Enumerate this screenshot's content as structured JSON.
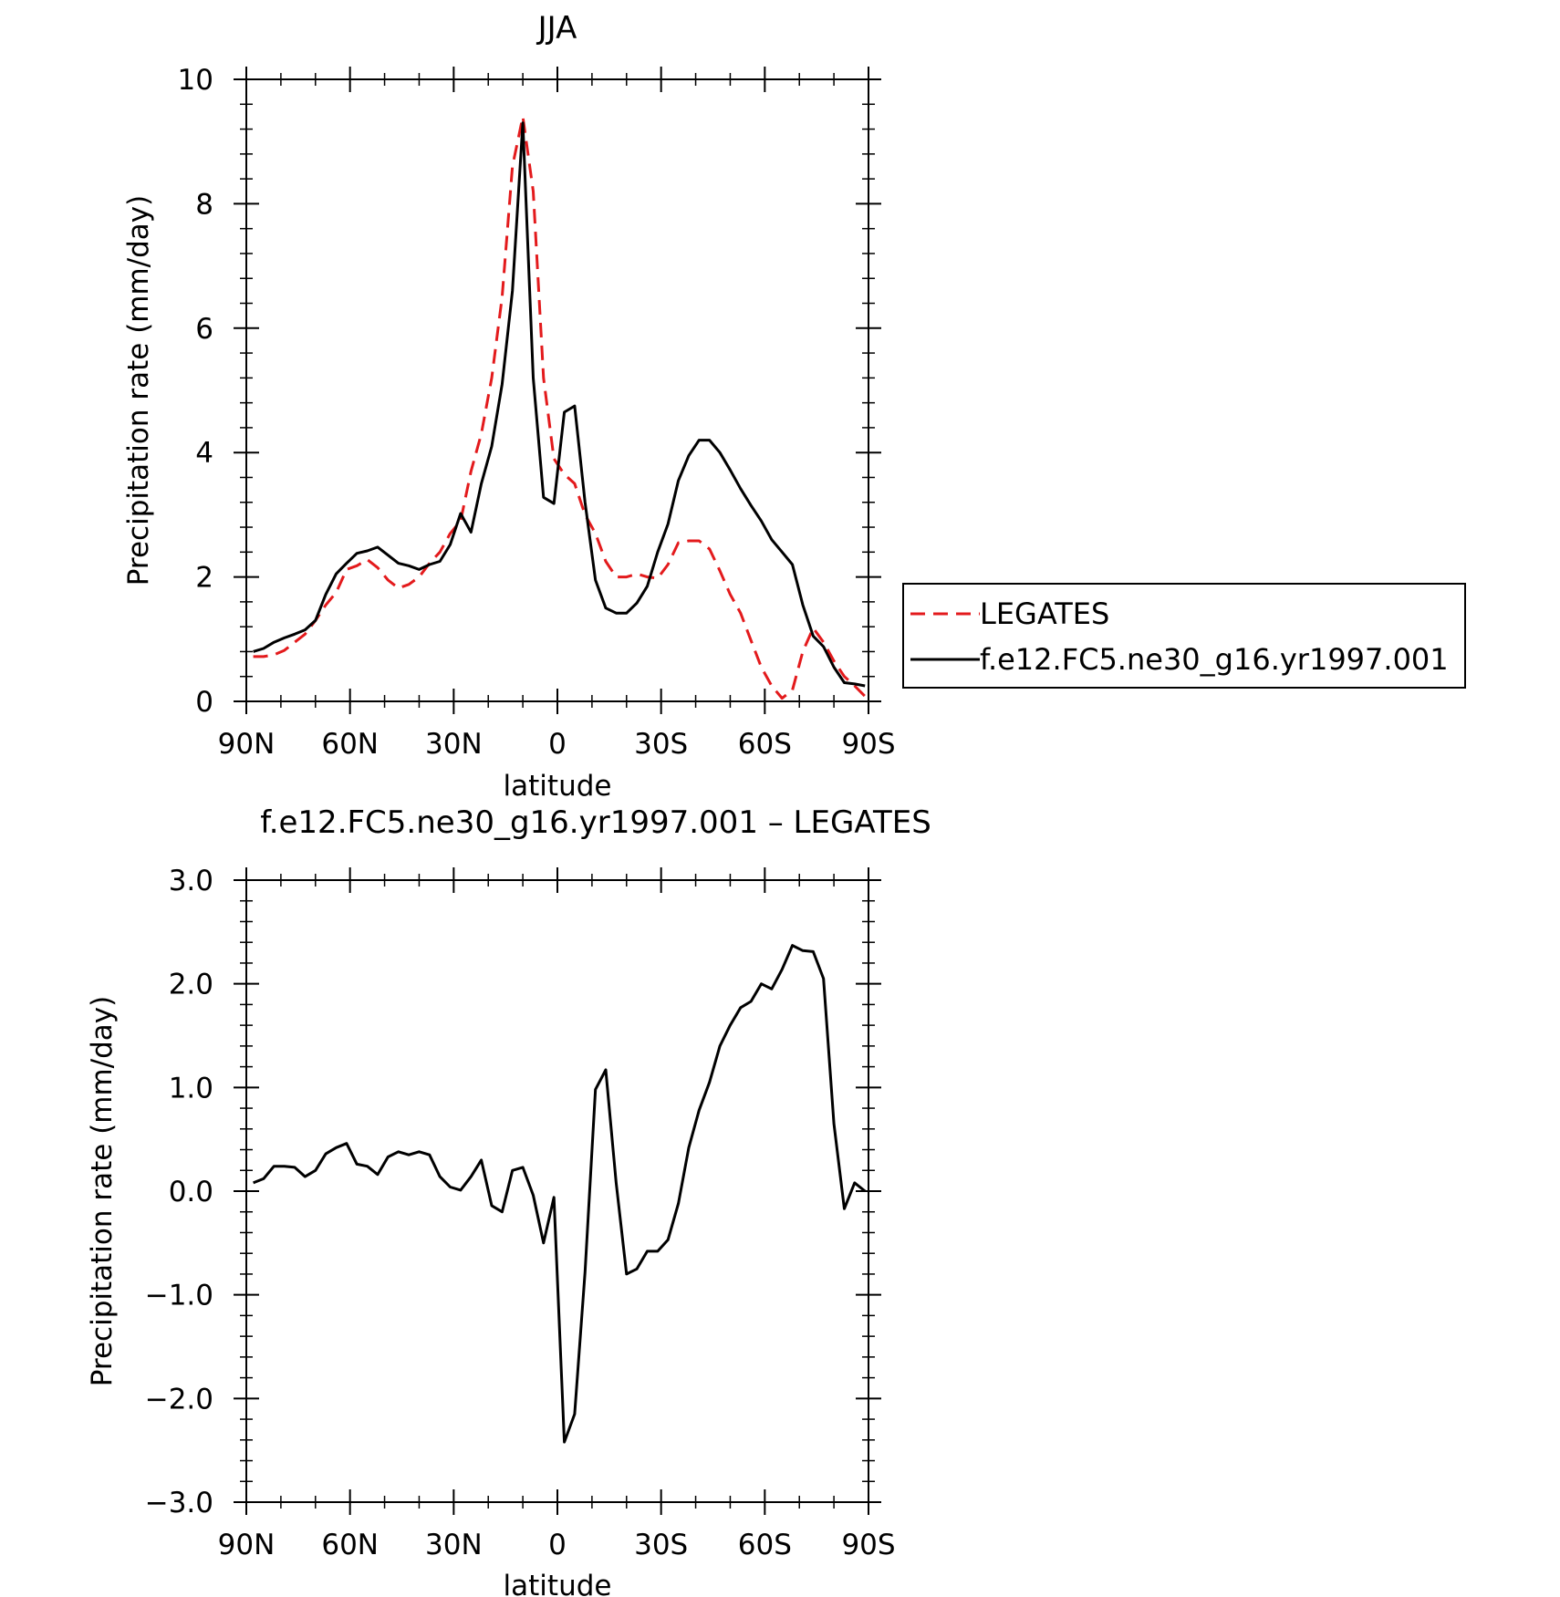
{
  "chart_data": [
    {
      "type": "line",
      "title": "JJA",
      "xlabel": "latitude",
      "ylabel": "Precipitation rate (mm/day)",
      "xlim": [
        90,
        -90
      ],
      "ylim": [
        0,
        10
      ],
      "x_ticks": [
        {
          "value": 90,
          "label": "90N"
        },
        {
          "value": 60,
          "label": "60N"
        },
        {
          "value": 30,
          "label": "30N"
        },
        {
          "value": 0,
          "label": "0"
        },
        {
          "value": -30,
          "label": "30S"
        },
        {
          "value": -60,
          "label": "60S"
        },
        {
          "value": -90,
          "label": "90S"
        }
      ],
      "y_ticks": [
        {
          "value": 0,
          "label": "0"
        },
        {
          "value": 2,
          "label": "2"
        },
        {
          "value": 4,
          "label": "4"
        },
        {
          "value": 6,
          "label": "6"
        },
        {
          "value": 8,
          "label": "8"
        },
        {
          "value": 10,
          "label": "10"
        }
      ],
      "legend_position": "right",
      "series": [
        {
          "name": "LEGATES",
          "color": "#e31a1c",
          "dash": true,
          "x": [
            88,
            85,
            82,
            79,
            76,
            73,
            70,
            67,
            64,
            61,
            58,
            55,
            52,
            49,
            46,
            43,
            40,
            37,
            34,
            31,
            28,
            25,
            22,
            19,
            16,
            13,
            10,
            7,
            4,
            1,
            -2,
            -5,
            -8,
            -11,
            -14,
            -17,
            -20,
            -23,
            -26,
            -29,
            -32,
            -35,
            -38,
            -41,
            -44,
            -47,
            -50,
            -53,
            -56,
            -59,
            -62,
            -65,
            -68,
            -71,
            -74,
            -77,
            -80,
            -83,
            -86,
            -89
          ],
          "y": [
            0.72,
            0.72,
            0.75,
            0.82,
            0.95,
            1.08,
            1.3,
            1.55,
            1.75,
            2.12,
            2.18,
            2.28,
            2.15,
            1.95,
            1.82,
            1.88,
            2.0,
            2.22,
            2.4,
            2.7,
            2.9,
            3.7,
            4.3,
            5.2,
            6.5,
            8.6,
            9.4,
            8.2,
            5.2,
            3.9,
            3.65,
            3.5,
            3.0,
            2.7,
            2.25,
            2.0,
            2.0,
            2.05,
            2.0,
            1.98,
            2.2,
            2.55,
            2.58,
            2.58,
            2.45,
            2.1,
            1.72,
            1.42,
            0.98,
            0.55,
            0.25,
            0.05,
            0.18,
            0.8,
            1.18,
            0.95,
            0.65,
            0.4,
            0.25,
            0.08
          ]
        },
        {
          "name": "f.e12.FC5.ne30_g16.yr1997.001",
          "color": "#000000",
          "dash": false,
          "x": [
            88,
            85,
            82,
            79,
            76,
            73,
            70,
            67,
            64,
            61,
            58,
            55,
            52,
            49,
            46,
            43,
            40,
            37,
            34,
            31,
            28,
            25,
            22,
            19,
            16,
            13,
            10,
            7,
            4,
            1,
            -2,
            -5,
            -8,
            -11,
            -14,
            -17,
            -20,
            -23,
            -26,
            -29,
            -32,
            -35,
            -38,
            -41,
            -44,
            -47,
            -50,
            -53,
            -56,
            -59,
            -62,
            -65,
            -68,
            -71,
            -74,
            -77,
            -80,
            -83,
            -86,
            -89
          ],
          "y": [
            0.8,
            0.85,
            0.95,
            1.02,
            1.08,
            1.15,
            1.3,
            1.72,
            2.05,
            2.22,
            2.38,
            2.42,
            2.48,
            2.35,
            2.22,
            2.18,
            2.12,
            2.2,
            2.25,
            2.52,
            3.02,
            2.72,
            3.5,
            4.1,
            5.1,
            6.6,
            9.3,
            5.2,
            3.28,
            3.18,
            4.65,
            4.75,
            3.2,
            1.95,
            1.5,
            1.42,
            1.42,
            1.58,
            1.85,
            2.4,
            2.85,
            3.55,
            3.95,
            4.2,
            4.2,
            4.0,
            3.72,
            3.42,
            3.15,
            2.9,
            2.6,
            2.4,
            2.2,
            1.55,
            1.05,
            0.88,
            0.55,
            0.3,
            0.28,
            0.25
          ]
        }
      ]
    },
    {
      "type": "line",
      "title": "f.e12.FC5.ne30_g16.yr1997.001 – LEGATES",
      "xlabel": "latitude",
      "ylabel": "Precipitation rate (mm/day)",
      "xlim": [
        90,
        -90
      ],
      "ylim": [
        -3,
        3
      ],
      "x_ticks": [
        {
          "value": 90,
          "label": "90N"
        },
        {
          "value": 60,
          "label": "60N"
        },
        {
          "value": 30,
          "label": "30N"
        },
        {
          "value": 0,
          "label": "0"
        },
        {
          "value": -30,
          "label": "30S"
        },
        {
          "value": -60,
          "label": "60S"
        },
        {
          "value": -90,
          "label": "90S"
        }
      ],
      "y_ticks": [
        {
          "value": -3,
          "label": "−3.0"
        },
        {
          "value": -2,
          "label": "−2.0"
        },
        {
          "value": -1,
          "label": "−1.0"
        },
        {
          "value": 0,
          "label": "0.0"
        },
        {
          "value": 1,
          "label": "1.0"
        },
        {
          "value": 2,
          "label": "2.0"
        },
        {
          "value": 3,
          "label": "3.0"
        }
      ],
      "series": [
        {
          "color": "#000000",
          "dash": false,
          "x": [
            88,
            85,
            82,
            79,
            76,
            73,
            70,
            67,
            64,
            61,
            58,
            55,
            52,
            49,
            46,
            43,
            40,
            37,
            34,
            31,
            28,
            25,
            22,
            19,
            16,
            13,
            10,
            7,
            4,
            1,
            -2,
            -5,
            -8,
            -11,
            -14,
            -17,
            -20,
            -23,
            -26,
            -29,
            -32,
            -35,
            -38,
            -41,
            -44,
            -47,
            -50,
            -53,
            -56,
            -59,
            -62,
            -65,
            -68,
            -71,
            -74,
            -77,
            -80,
            -83,
            -86,
            -89
          ],
          "y": [
            0.08,
            0.12,
            0.24,
            0.24,
            0.23,
            0.14,
            0.2,
            0.36,
            0.42,
            0.46,
            0.26,
            0.24,
            0.16,
            0.33,
            0.38,
            0.35,
            0.38,
            0.35,
            0.14,
            0.04,
            0.01,
            0.14,
            0.3,
            -0.14,
            -0.2,
            0.2,
            0.23,
            -0.04,
            -0.5,
            -0.06,
            -2.42,
            -2.15,
            -0.78,
            0.98,
            1.17,
            0.08,
            -0.8,
            -0.75,
            -0.58,
            -0.58,
            -0.47,
            -0.12,
            0.42,
            0.78,
            1.05,
            1.4,
            1.6,
            1.77,
            1.83,
            2.0,
            1.95,
            2.14,
            2.37,
            2.32,
            2.31,
            2.05,
            0.65,
            -0.17,
            0.08,
            0.0
          ]
        }
      ]
    }
  ]
}
